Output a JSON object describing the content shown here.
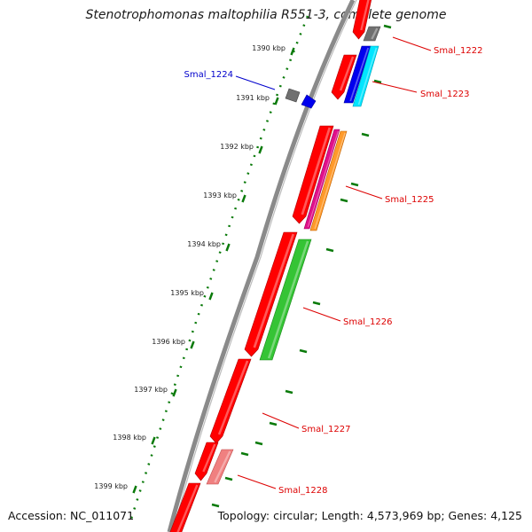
{
  "title": "Stenotrophomonas maltophilia R551-3, complete genome",
  "footer": {
    "accession": "Accession: NC_011071",
    "topology": "Topology: circular; Length: 4,573,969 bp; Genes: 4,125"
  },
  "kbp_labels": [
    "1390 kbp",
    "1391 kbp",
    "1392 kbp",
    "1393 kbp",
    "1394 kbp",
    "1395 kbp",
    "1396 kbp",
    "1397 kbp",
    "1398 kbp",
    "1399 kbp"
  ],
  "genes": [
    {
      "id": "Smal_1222",
      "color": "#dd0000"
    },
    {
      "id": "Smal_1223",
      "color": "#dd0000"
    },
    {
      "id": "Smal_1224",
      "color": "#0000cc"
    },
    {
      "id": "Smal_1225",
      "color": "#dd0000"
    },
    {
      "id": "Smal_1226",
      "color": "#dd0000"
    },
    {
      "id": "Smal_1227",
      "color": "#dd0000"
    },
    {
      "id": "Smal_1228",
      "color": "#dd0000"
    }
  ],
  "colors": {
    "cds": "#ff0000",
    "backbone": "#8a8a8a",
    "ruler": "#0a7a0a",
    "gray_feature": "#707070",
    "blue_feature": "#0000ee",
    "cyan_feature": "#00e5ff",
    "magenta_feature": "#e0108a",
    "orange_feature": "#ff9a2a",
    "green_feature": "#35c435",
    "pink_feature": "#f08080"
  }
}
